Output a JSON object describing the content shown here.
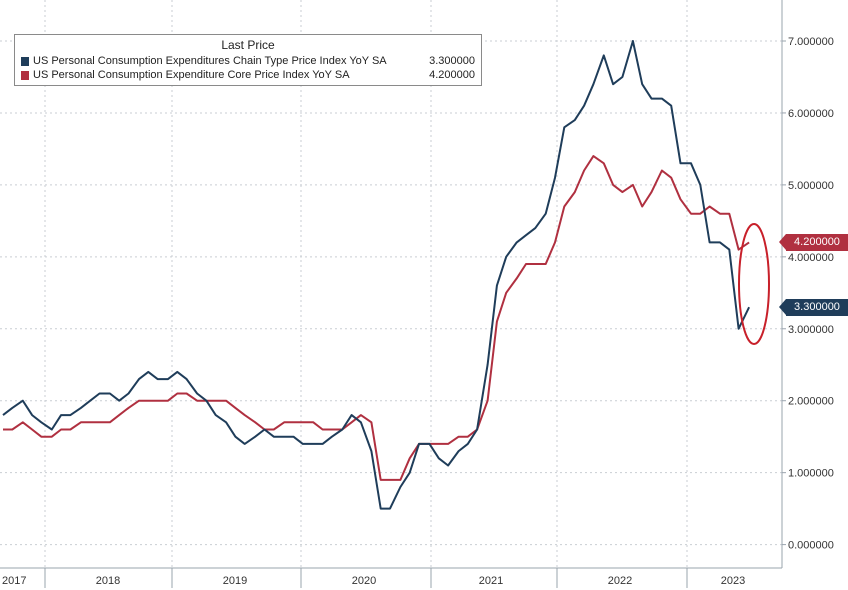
{
  "chart_data": {
    "type": "line",
    "legend_title": "Last Price",
    "legend_placement": "top-left",
    "ylim": [
      0,
      7.5
    ],
    "y_ticks": [
      "0.000000",
      "1.000000",
      "2.000000",
      "3.000000",
      "4.000000",
      "5.000000",
      "6.000000",
      "7.000000"
    ],
    "y_tick_values": [
      0,
      1,
      2,
      3,
      4,
      5,
      6,
      7
    ],
    "x_year_labels": [
      "2017",
      "2018",
      "2019",
      "2020",
      "2021",
      "2022",
      "2023"
    ],
    "grid": true,
    "series": [
      {
        "name": "US Personal Consumption Expenditures Chain Type Price Index YoY SA",
        "last_value": "3.300000",
        "color": "#1f3d5a",
        "x": [
          2017.0,
          2017.08,
          2017.17,
          2017.25,
          2017.33,
          2017.42,
          2017.5,
          2017.58,
          2017.67,
          2017.75,
          2017.83,
          2017.92,
          2018.0,
          2018.08,
          2018.17,
          2018.25,
          2018.33,
          2018.42,
          2018.5,
          2018.58,
          2018.67,
          2018.75,
          2018.83,
          2018.92,
          2019.0,
          2019.08,
          2019.17,
          2019.25,
          2019.33,
          2019.42,
          2019.5,
          2019.58,
          2019.67,
          2019.75,
          2019.83,
          2019.92,
          2020.0,
          2020.08,
          2020.17,
          2020.25,
          2020.33,
          2020.42,
          2020.5,
          2020.58,
          2020.67,
          2020.75,
          2020.83,
          2020.92,
          2021.0,
          2021.08,
          2021.17,
          2021.25,
          2021.33,
          2021.42,
          2021.5,
          2021.58,
          2021.67,
          2021.75,
          2021.83,
          2021.92,
          2022.0,
          2022.08,
          2022.17,
          2022.25,
          2022.33,
          2022.42,
          2022.5,
          2022.58,
          2022.67,
          2022.75,
          2022.83,
          2022.92,
          2023.0,
          2023.08,
          2023.17,
          2023.25,
          2023.33,
          2023.42
        ],
        "values": [
          1.8,
          1.9,
          2.0,
          1.8,
          1.7,
          1.6,
          1.8,
          1.8,
          1.9,
          2.0,
          2.1,
          2.1,
          2.0,
          2.1,
          2.3,
          2.4,
          2.3,
          2.3,
          2.4,
          2.3,
          2.1,
          2.0,
          1.8,
          1.7,
          1.5,
          1.4,
          1.5,
          1.6,
          1.5,
          1.5,
          1.5,
          1.4,
          1.4,
          1.4,
          1.5,
          1.6,
          1.8,
          1.7,
          1.3,
          0.5,
          0.5,
          0.8,
          1.0,
          1.4,
          1.4,
          1.2,
          1.1,
          1.3,
          1.4,
          1.6,
          2.5,
          3.6,
          4.0,
          4.2,
          4.3,
          4.4,
          4.6,
          5.1,
          5.8,
          5.9,
          6.1,
          6.4,
          6.8,
          6.4,
          6.5,
          7.0,
          6.4,
          6.2,
          6.2,
          6.1,
          5.3,
          5.3,
          5.0,
          4.2,
          4.2,
          4.1,
          3.0,
          3.3
        ]
      },
      {
        "name": "US Personal Consumption Expenditure Core Price Index YoY SA",
        "last_value": "4.200000",
        "color": "#b03040",
        "x": [
          2017.0,
          2017.08,
          2017.17,
          2017.25,
          2017.33,
          2017.42,
          2017.5,
          2017.58,
          2017.67,
          2017.75,
          2017.83,
          2017.92,
          2018.0,
          2018.08,
          2018.17,
          2018.25,
          2018.33,
          2018.42,
          2018.5,
          2018.58,
          2018.67,
          2018.75,
          2018.83,
          2018.92,
          2019.0,
          2019.08,
          2019.17,
          2019.25,
          2019.33,
          2019.42,
          2019.5,
          2019.58,
          2019.67,
          2019.75,
          2019.83,
          2019.92,
          2020.0,
          2020.08,
          2020.17,
          2020.25,
          2020.33,
          2020.42,
          2020.5,
          2020.58,
          2020.67,
          2020.75,
          2020.83,
          2020.92,
          2021.0,
          2021.08,
          2021.17,
          2021.25,
          2021.33,
          2021.42,
          2021.5,
          2021.58,
          2021.67,
          2021.75,
          2021.83,
          2021.92,
          2022.0,
          2022.08,
          2022.17,
          2022.25,
          2022.33,
          2022.42,
          2022.5,
          2022.58,
          2022.67,
          2022.75,
          2022.83,
          2022.92,
          2023.0,
          2023.08,
          2023.17,
          2023.25,
          2023.33,
          2023.42
        ],
        "values": [
          1.6,
          1.6,
          1.7,
          1.6,
          1.5,
          1.5,
          1.6,
          1.6,
          1.7,
          1.7,
          1.7,
          1.7,
          1.8,
          1.9,
          2.0,
          2.0,
          2.0,
          2.0,
          2.1,
          2.1,
          2.0,
          2.0,
          2.0,
          2.0,
          1.9,
          1.8,
          1.7,
          1.6,
          1.6,
          1.7,
          1.7,
          1.7,
          1.7,
          1.6,
          1.6,
          1.6,
          1.7,
          1.8,
          1.7,
          0.9,
          0.9,
          0.9,
          1.2,
          1.4,
          1.4,
          1.4,
          1.4,
          1.5,
          1.5,
          1.6,
          2.0,
          3.1,
          3.5,
          3.7,
          3.9,
          3.9,
          3.9,
          4.2,
          4.7,
          4.9,
          5.2,
          5.4,
          5.3,
          5.0,
          4.9,
          5.0,
          4.7,
          4.9,
          5.2,
          5.1,
          4.8,
          4.6,
          4.6,
          4.7,
          4.6,
          4.6,
          4.1,
          4.2
        ]
      }
    ]
  }
}
